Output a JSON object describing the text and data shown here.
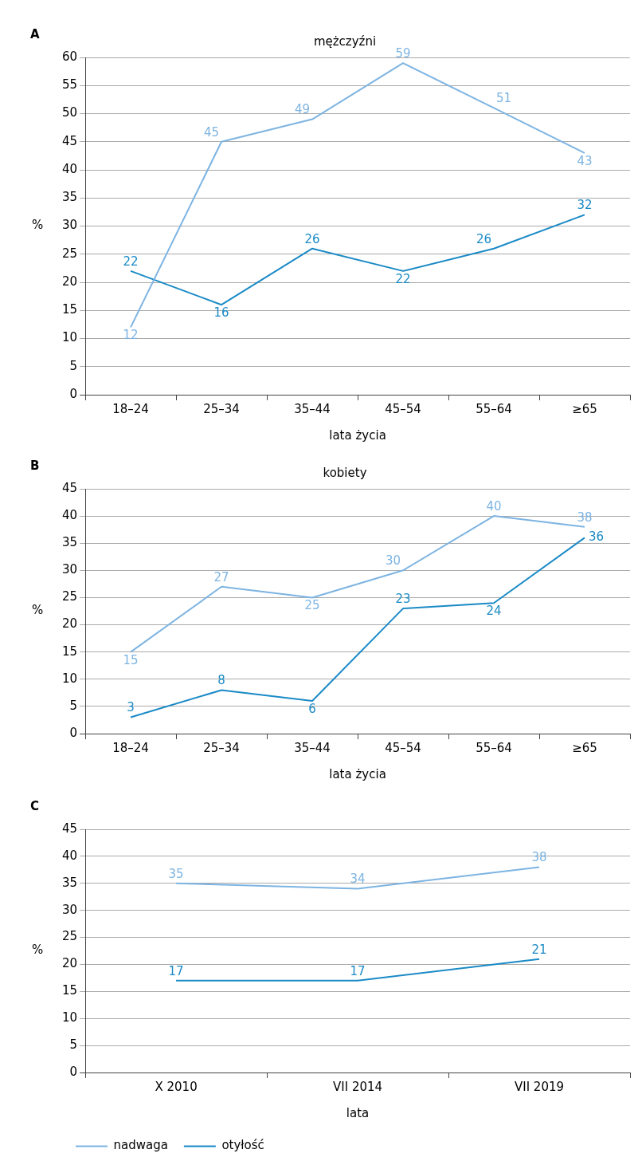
{
  "chart_data": [
    {
      "type": "line",
      "title": "mężczyźni",
      "xlabel": "lata życia",
      "ylabel": "%",
      "annotations": [
        "A"
      ],
      "categories": [
        "18–24",
        "25–34",
        "35–44",
        "45–54",
        "55–64",
        "≥65"
      ],
      "series": [
        {
          "color": "#7db4e2",
          "values": [
            12,
            45,
            49,
            59,
            51,
            43
          ]
        },
        {
          "color": "#1a8ac6",
          "values": [
            22,
            16,
            26,
            22,
            26,
            32
          ]
        }
      ],
      "ylim": [
        0,
        60
      ],
      "yticks": [
        0,
        5,
        10,
        15,
        20,
        25,
        30,
        35,
        40,
        45,
        50,
        55,
        60
      ],
      "grid": "y",
      "legend": false,
      "marker": "none",
      "data_labels": true
    },
    {
      "type": "line",
      "title": "kobiety",
      "xlabel": "lata życia",
      "ylabel": "%",
      "annotations": [
        "B"
      ],
      "categories": [
        "18–24",
        "25–34",
        "35–44",
        "45–54",
        "55–64",
        "≥65"
      ],
      "series": [
        {
          "color": "#7db4e2",
          "values": [
            15,
            27,
            25,
            30,
            40,
            38
          ]
        },
        {
          "color": "#1a8ac6",
          "values": [
            3,
            8,
            6,
            23,
            24,
            36
          ]
        }
      ],
      "ylim": [
        0,
        45
      ],
      "yticks": [
        0,
        5,
        10,
        15,
        20,
        25,
        30,
        35,
        40,
        45
      ],
      "grid": "y",
      "legend": false,
      "marker": "none",
      "data_labels": true
    },
    {
      "type": "line",
      "xlabel": "lata",
      "ylabel": "%",
      "annotations": [
        "C"
      ],
      "categories": [
        "X 2010",
        "VII 2014",
        "VII 2019"
      ],
      "series": [
        {
          "name": "nadwaga",
          "color": "#7db4e2",
          "values": [
            35,
            34,
            38
          ]
        },
        {
          "name": "otyłość",
          "color": "#1a8ac6",
          "values": [
            17,
            17,
            21
          ]
        }
      ],
      "ylim": [
        0,
        45
      ],
      "yticks": [
        0,
        5,
        10,
        15,
        20,
        25,
        30,
        35,
        40,
        45
      ],
      "grid": "y",
      "legend": "bottom",
      "marker": "none",
      "data_labels": true
    }
  ]
}
